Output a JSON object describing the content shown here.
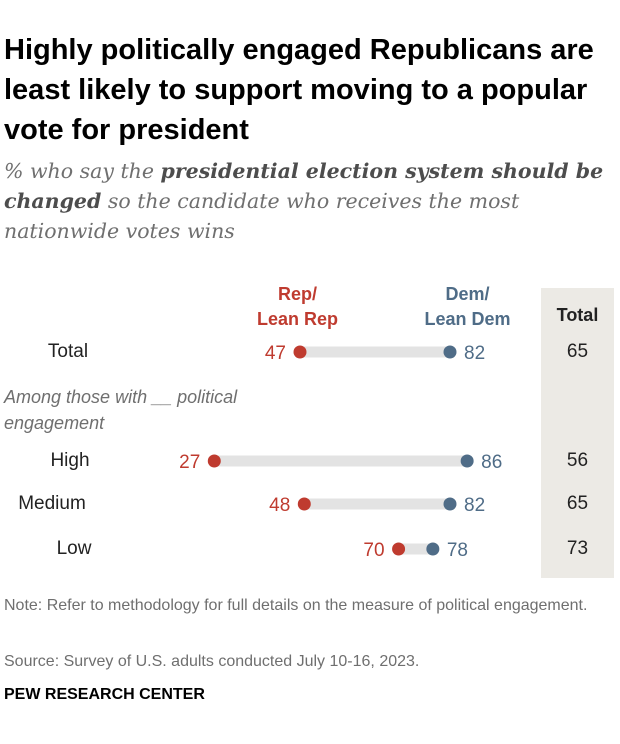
{
  "title": "Highly politically engaged Republicans are least likely to support moving to a popular vote for president",
  "subtitle": {
    "prefix": "% who say the ",
    "emphasis": "presidential election system should be changed",
    "suffix": " so the candidate who receives the most nationwide votes wins"
  },
  "legend": {
    "rep_line1": "Rep/",
    "rep_line2": "Lean Rep",
    "dem_line1": "Dem/",
    "dem_line2": "Lean Dem",
    "total": "Total"
  },
  "group_label": "Among those with __ political engagement",
  "colors": {
    "rep": "#bf3b2f",
    "dem": "#4f6c87",
    "bar": "#e3e3e3",
    "total_bg": "#eceae5"
  },
  "chart_data": {
    "type": "dot",
    "title": "Highly politically engaged Republicans are least likely to support moving to a popular vote for president",
    "series": [
      {
        "name": "Rep/Lean Rep",
        "values": [
          47,
          27,
          48,
          70
        ]
      },
      {
        "name": "Dem/Lean Dem",
        "values": [
          82,
          86,
          82,
          78
        ]
      }
    ],
    "categories": [
      "Total",
      "High",
      "Medium",
      "Low"
    ],
    "totals": [
      65,
      56,
      65,
      73
    ],
    "xlim": [
      0,
      100
    ]
  },
  "note": "Note: Refer to methodology for full details on the measure of political engagement.",
  "source": "Source: Survey of U.S. adults conducted July 10-16, 2023.",
  "footer": "PEW RESEARCH CENTER"
}
